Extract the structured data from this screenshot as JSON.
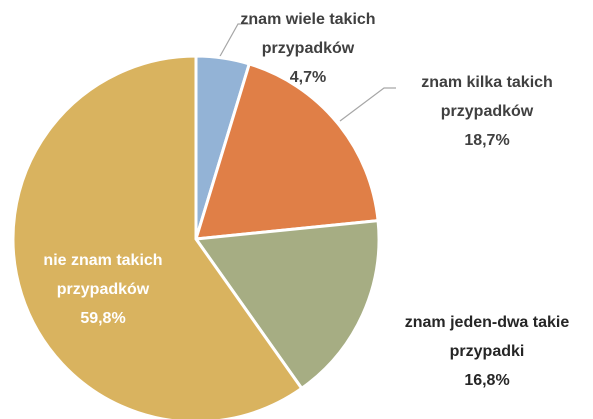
{
  "chart_data": {
    "type": "pie",
    "categories": [
      "znam wiele takich przypadków",
      "znam kilka takich przypadków",
      "znam jeden-dwa takie przypadki",
      "nie znam takich przypadków"
    ],
    "values": [
      4.7,
      18.7,
      16.8,
      59.8
    ],
    "value_labels": [
      "4,7%",
      "18,7%",
      "16,8%",
      "59,8%"
    ],
    "colors": [
      "#93b3d6",
      "#e07f47",
      "#a6ad83",
      "#d9b35f"
    ]
  }
}
